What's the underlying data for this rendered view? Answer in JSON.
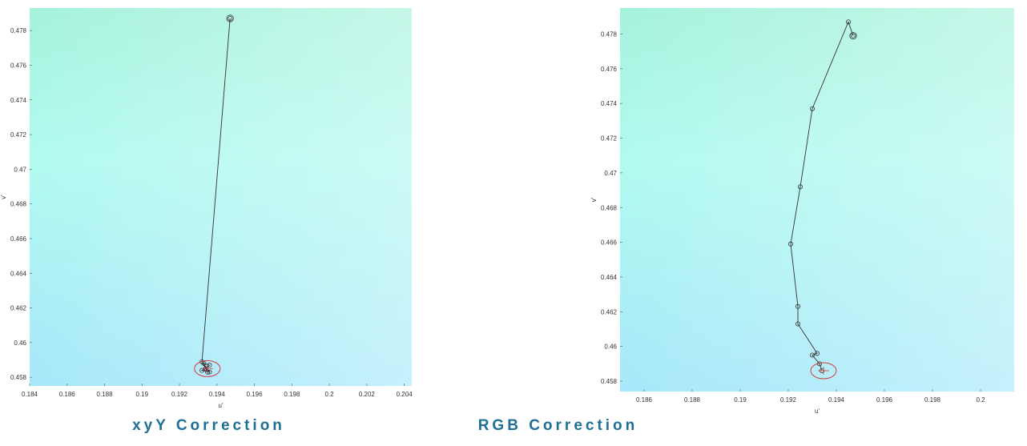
{
  "chart_data": [
    {
      "type": "line",
      "caption": "xyY Correction",
      "xlabel": "u'",
      "ylabel": "v'",
      "xlim": [
        0.184,
        0.2044
      ],
      "ylim": [
        0.4575,
        0.4793
      ],
      "xticks": [
        "0.184",
        "0.186",
        "0.188",
        "0.19",
        "0.192",
        "0.194",
        "0.196",
        "0.198",
        "0.2",
        "0.202",
        "0.204"
      ],
      "yticks": [
        "0.458",
        "0.46",
        "0.462",
        "0.464",
        "0.466",
        "0.468",
        "0.47",
        "0.472",
        "0.474",
        "0.476",
        "0.478"
      ],
      "grid": false,
      "series": [
        {
          "x": [
            0.1947,
            0.1932,
            0.1935,
            0.1933,
            0.1936,
            0.1934,
            0.1932,
            0.1936,
            0.1934
          ],
          "y": [
            0.4787,
            0.4589,
            0.4583,
            0.4588,
            0.4587,
            0.4585,
            0.4584,
            0.4583,
            0.4585
          ]
        }
      ],
      "target": {
        "x": 0.1934,
        "y": 0.4585
      }
    },
    {
      "type": "line",
      "caption": "RGB Correction",
      "xlabel": "u'",
      "ylabel": "v'",
      "xlim": [
        0.185,
        0.2014
      ],
      "ylim": [
        0.4574,
        0.4795
      ],
      "xticks": [
        "0.186",
        "0.188",
        "0.19",
        "0.192",
        "0.194",
        "0.196",
        "0.198",
        "0.2"
      ],
      "yticks": [
        "0.458",
        "0.46",
        "0.462",
        "0.464",
        "0.466",
        "0.468",
        "0.47",
        "0.472",
        "0.474",
        "0.476",
        "0.478"
      ],
      "grid": false,
      "series": [
        {
          "x": [
            0.1947,
            0.1945,
            0.193,
            0.1925,
            0.1921,
            0.1924,
            0.1924,
            0.1932,
            0.193,
            0.1933,
            0.1934
          ],
          "y": [
            0.4779,
            0.4787,
            0.4737,
            0.4692,
            0.4659,
            0.4623,
            0.4613,
            0.4596,
            0.4595,
            0.459,
            0.4586
          ]
        }
      ],
      "target": {
        "x": 0.1934,
        "y": 0.4586
      }
    }
  ]
}
